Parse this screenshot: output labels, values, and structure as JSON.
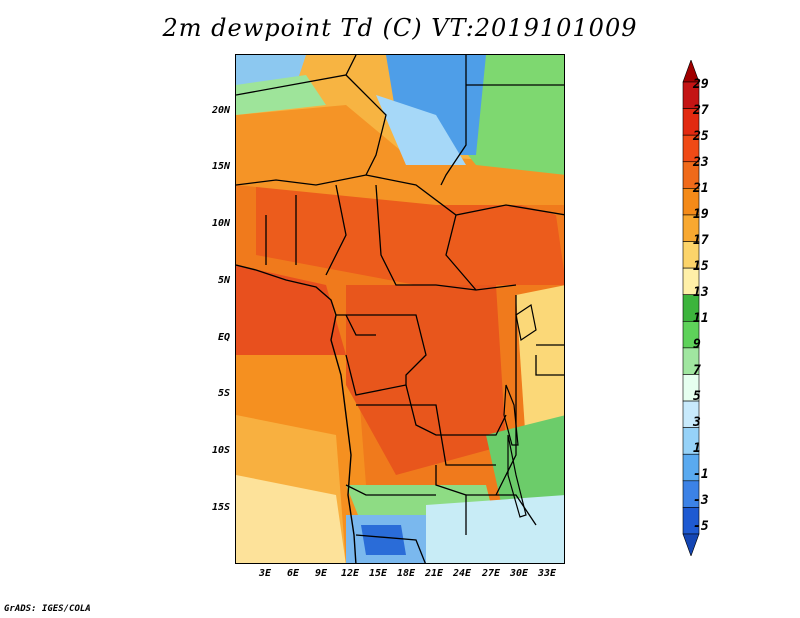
{
  "title": "2m dewpoint Td (C) VT:2019101009",
  "credit": "GrADS: IGES/COLA",
  "map": {
    "y_labels": [
      "20N",
      "15N",
      "10N",
      "5N",
      "EQ",
      "5S",
      "10S",
      "15S"
    ],
    "x_labels": [
      "3E",
      "6E",
      "9E",
      "12E",
      "15E",
      "18E",
      "21E",
      "24E",
      "27E",
      "30E",
      "33E"
    ]
  },
  "colorbar": {
    "labels": [
      "29",
      "27",
      "25",
      "23",
      "21",
      "19",
      "17",
      "15",
      "13",
      "11",
      "9",
      "7",
      "5",
      "3",
      "1",
      "-1",
      "-3",
      "-5"
    ],
    "colors": [
      "#a00000",
      "#c41414",
      "#e22a10",
      "#f04a16",
      "#f06a1a",
      "#f48a18",
      "#f8a830",
      "#fcd46a",
      "#fff0a8",
      "#3cb43c",
      "#5ed25a",
      "#a0e6a0",
      "#e6fff0",
      "#c8eafc",
      "#96d2f8",
      "#5aaaf0",
      "#3c82e6",
      "#1e5ad2",
      "#1446b4"
    ]
  }
}
